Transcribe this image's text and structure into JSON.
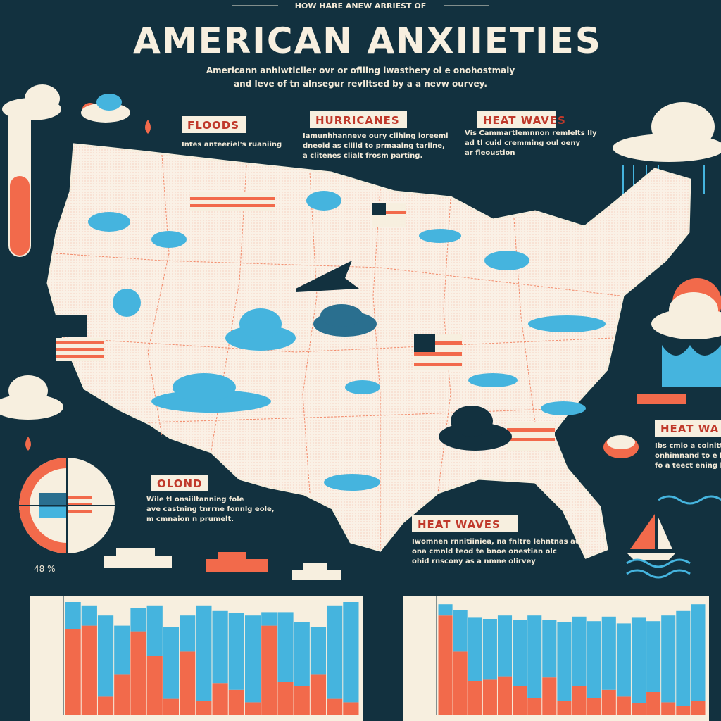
{
  "header": {
    "kicker": "HOW HARE ANEW ARRIEST OF",
    "title": "AMERICAN ANXIIETIES",
    "subtitle": [
      "Americann anhiwticiler ovr or ofiling lwasthery ol e onohostmaly",
      "and leve of tn alnsegur revlltsed by a a nevw ourvey."
    ]
  },
  "callouts": [
    {
      "heading": "FLOODS",
      "body": [
        "Intes anteeriel's ruaniing"
      ]
    },
    {
      "heading": "HURRICANES",
      "body": [
        "Iamunhhanneve oury clihing ioreeml",
        "dneoid as cliild to prmaaing tarilne,",
        "a clitenes clialt frosm parting."
      ]
    },
    {
      "heading": "HEAT WAVES",
      "body": [
        "Vis Cammartlemnnon remlelts lly",
        "ad tl cuid cremming oul oeny",
        "ar fleoustion"
      ]
    },
    {
      "heading": "HEAT WA",
      "body": [
        "Ibs cmio a coinitt",
        "onhimnand to e lh",
        "fo a teect ening la"
      ]
    },
    {
      "heading": "OLOND",
      "body": [
        "Wile tl onsiiltanning fole",
        "ave castning tnrrne fonnlg eole,",
        "m cmnaion n prumelt."
      ]
    },
    {
      "heading": "HEAT WAVES",
      "body": [
        "Iwomnen rnnitiiniea, na fnltre lehntnas aud",
        "ona cmnld teod te bnoe onestian olc",
        "ohid rnscony as a nmne olirvey"
      ]
    }
  ],
  "pie_label": "48 %",
  "chart_data": [
    {
      "type": "bar",
      "stacked": true,
      "ylim": [
        0,
        100
      ],
      "series": [
        {
          "color": "#f26a4b",
          "values": [
            76,
            79,
            16,
            36,
            74,
            52,
            14,
            56,
            12,
            28,
            22,
            11,
            79,
            29,
            25,
            36,
            14,
            11
          ]
        },
        {
          "color": "#45b4de",
          "values": [
            24,
            18,
            72,
            43,
            21,
            45,
            64,
            32,
            85,
            64,
            68,
            77,
            12,
            62,
            57,
            42,
            83,
            89
          ]
        }
      ]
    },
    {
      "type": "bar",
      "stacked": true,
      "ylim": [
        0,
        100
      ],
      "series": [
        {
          "color": "#f26a4b",
          "values": [
            88,
            56,
            30,
            31,
            34,
            25,
            15,
            33,
            12,
            25,
            15,
            22,
            16,
            10,
            20,
            11,
            8,
            12
          ]
        },
        {
          "color": "#45b4de",
          "values": [
            10,
            37,
            56,
            54,
            54,
            59,
            73,
            51,
            70,
            62,
            68,
            65,
            65,
            76,
            63,
            77,
            84,
            86
          ]
        }
      ]
    }
  ]
}
